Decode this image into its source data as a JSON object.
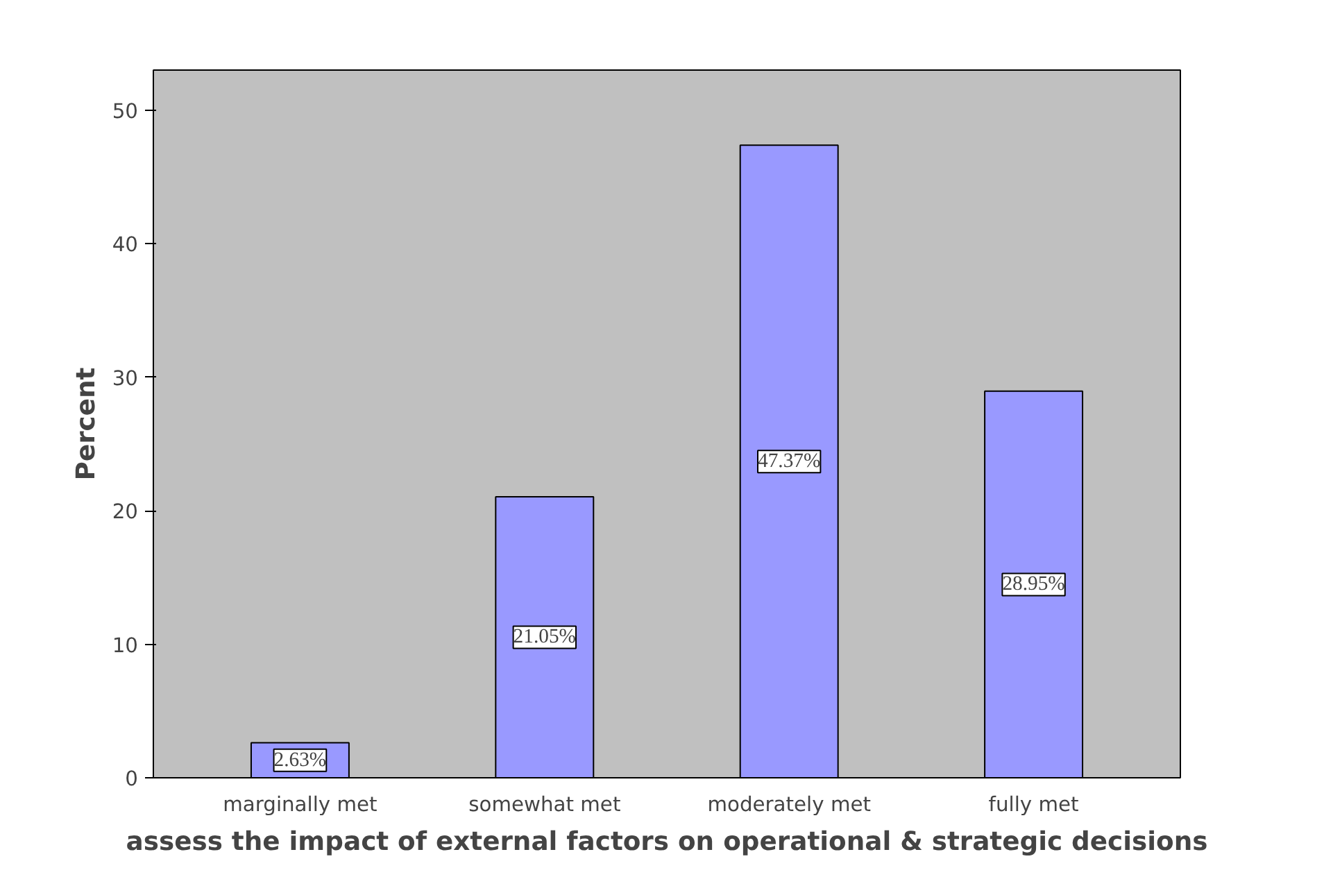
{
  "chart_data": {
    "type": "bar",
    "categories": [
      "marginally met",
      "somewhat met",
      "moderately met",
      "fully met"
    ],
    "values": [
      2.63,
      21.05,
      47.37,
      28.95
    ],
    "value_labels": [
      "2.63%",
      "21.05%",
      "47.37%",
      "28.95%"
    ],
    "color": "#9999ff",
    "xlabel": "assess the impact of external factors on operational & strategic decisions",
    "ylabel": "Percent",
    "ylim": [
      0,
      53
    ],
    "yticks": [
      0,
      10,
      20,
      30,
      40,
      50
    ],
    "grid": false
  }
}
